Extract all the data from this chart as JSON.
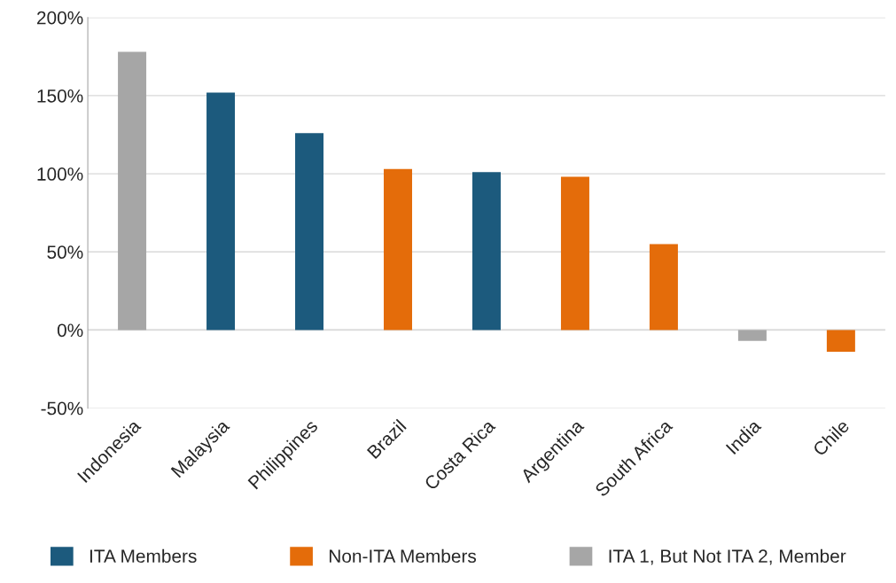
{
  "chart_data": {
    "type": "bar",
    "categories": [
      "Indonesia",
      "Malaysia",
      "Philippines",
      "Brazil",
      "Costa Rica",
      "Argentina",
      "South Africa",
      "India",
      "Chile"
    ],
    "series": [
      {
        "name": "ITA Members",
        "color": "#1c5a7d",
        "values": [
          null,
          152,
          126,
          null,
          101,
          null,
          null,
          null,
          null
        ]
      },
      {
        "name": "Non-ITA Members",
        "color": "#e46c0a",
        "values": [
          null,
          null,
          null,
          103,
          null,
          98,
          55,
          null,
          -14
        ]
      },
      {
        "name": "ITA 1, But Not ITA 2, Member",
        "color": "#a6a6a6",
        "values": [
          178,
          null,
          null,
          null,
          null,
          null,
          null,
          -7,
          null
        ]
      }
    ],
    "ylim": [
      -50,
      200
    ],
    "yticks": [
      {
        "value": -50,
        "label": "-50%"
      },
      {
        "value": 0,
        "label": "0%"
      },
      {
        "value": 50,
        "label": "50%"
      },
      {
        "value": 100,
        "label": "100%"
      },
      {
        "value": 150,
        "label": "150%"
      },
      {
        "value": 200,
        "label": "200%"
      }
    ],
    "grid": "y",
    "legend": "bottom"
  }
}
